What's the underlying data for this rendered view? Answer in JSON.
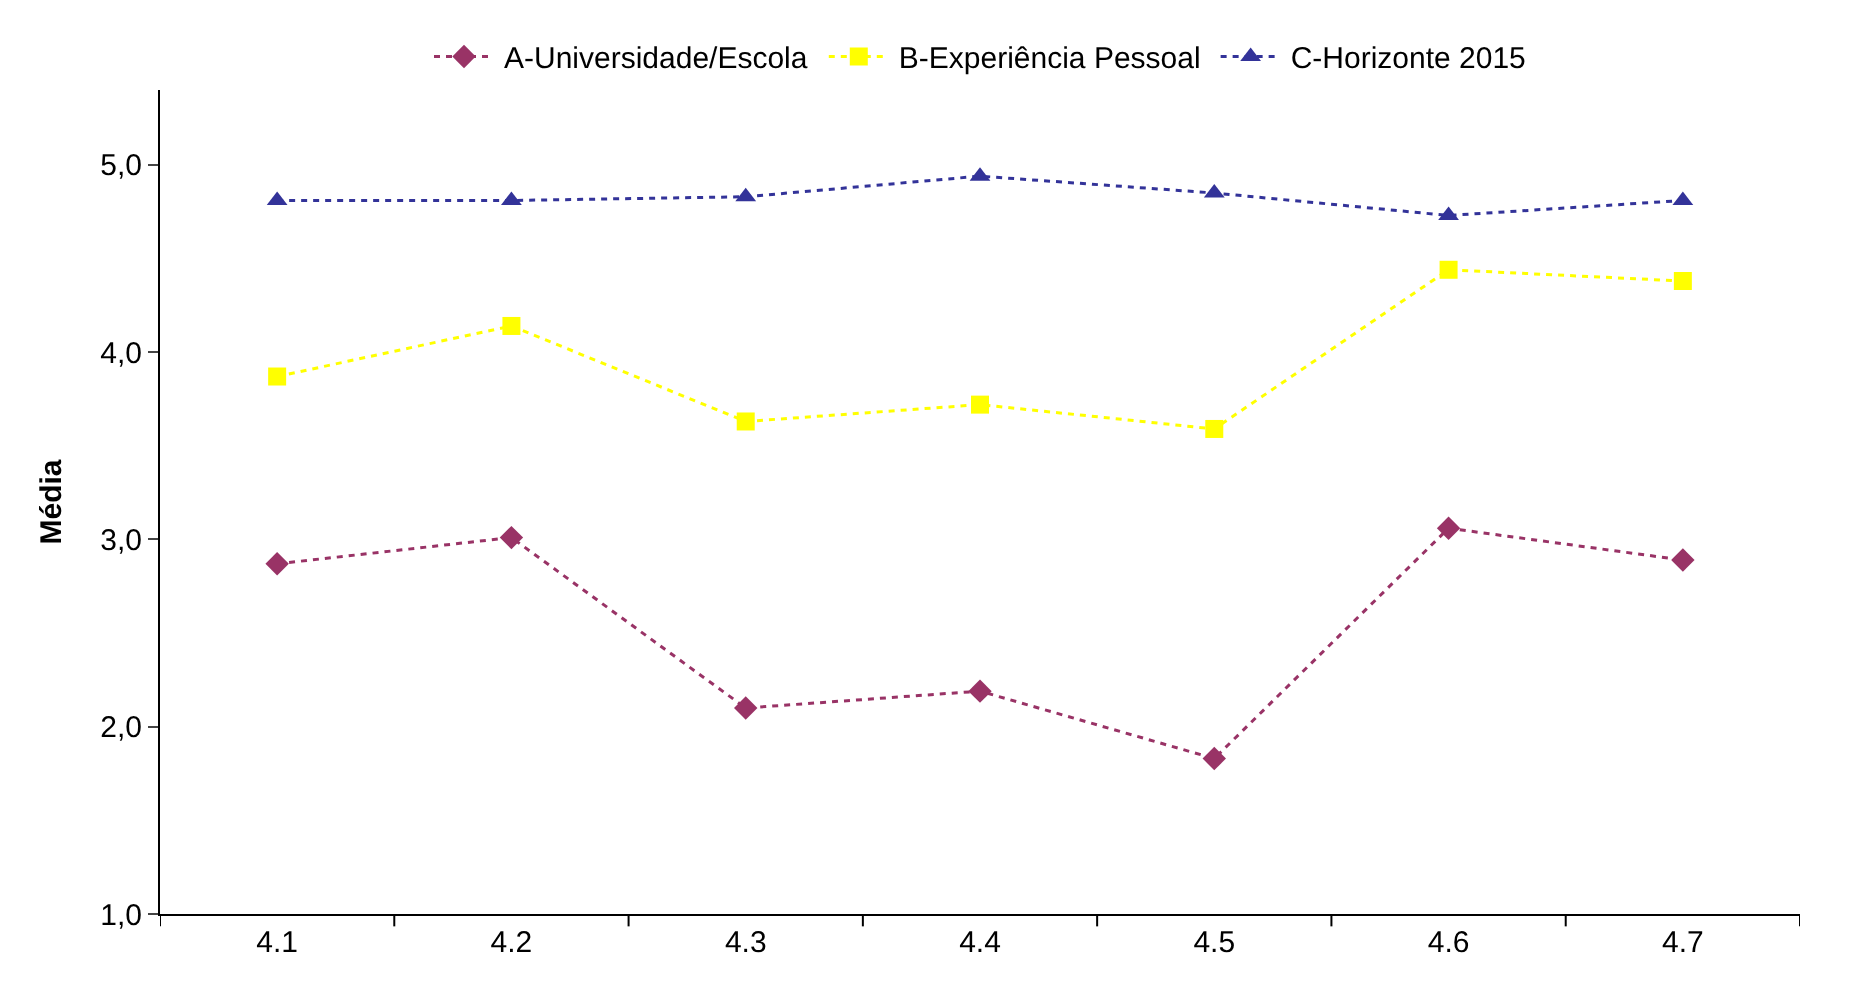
{
  "chart_data": {
    "type": "line",
    "ylabel": "Média",
    "categories": [
      "4.1",
      "4.2",
      "4.3",
      "4.4",
      "4.5",
      "4.6",
      "4.7"
    ],
    "series": [
      {
        "name": "A-Universidade/Escola",
        "color": "#993366",
        "marker": "diamond",
        "values": [
          2.87,
          3.01,
          2.1,
          2.19,
          1.83,
          3.06,
          2.89
        ]
      },
      {
        "name": "B-Experiência Pessoal",
        "color": "#ffff00",
        "marker": "square",
        "values": [
          3.87,
          4.14,
          3.63,
          3.72,
          3.59,
          4.44,
          4.38
        ]
      },
      {
        "name": "C-Horizonte 2015",
        "color": "#333399",
        "marker": "triangle",
        "values": [
          4.81,
          4.81,
          4.83,
          4.94,
          4.85,
          4.73,
          4.81
        ]
      }
    ],
    "ylim": [
      1,
      5.4
    ],
    "yticks": [
      {
        "value": 1,
        "label": "1,0"
      },
      {
        "value": 2,
        "label": "2,0"
      },
      {
        "value": 3,
        "label": "3,0"
      },
      {
        "value": 4,
        "label": "4,0"
      },
      {
        "value": 5,
        "label": "5,0"
      }
    ],
    "legend": "top",
    "line_style": "dotted"
  }
}
